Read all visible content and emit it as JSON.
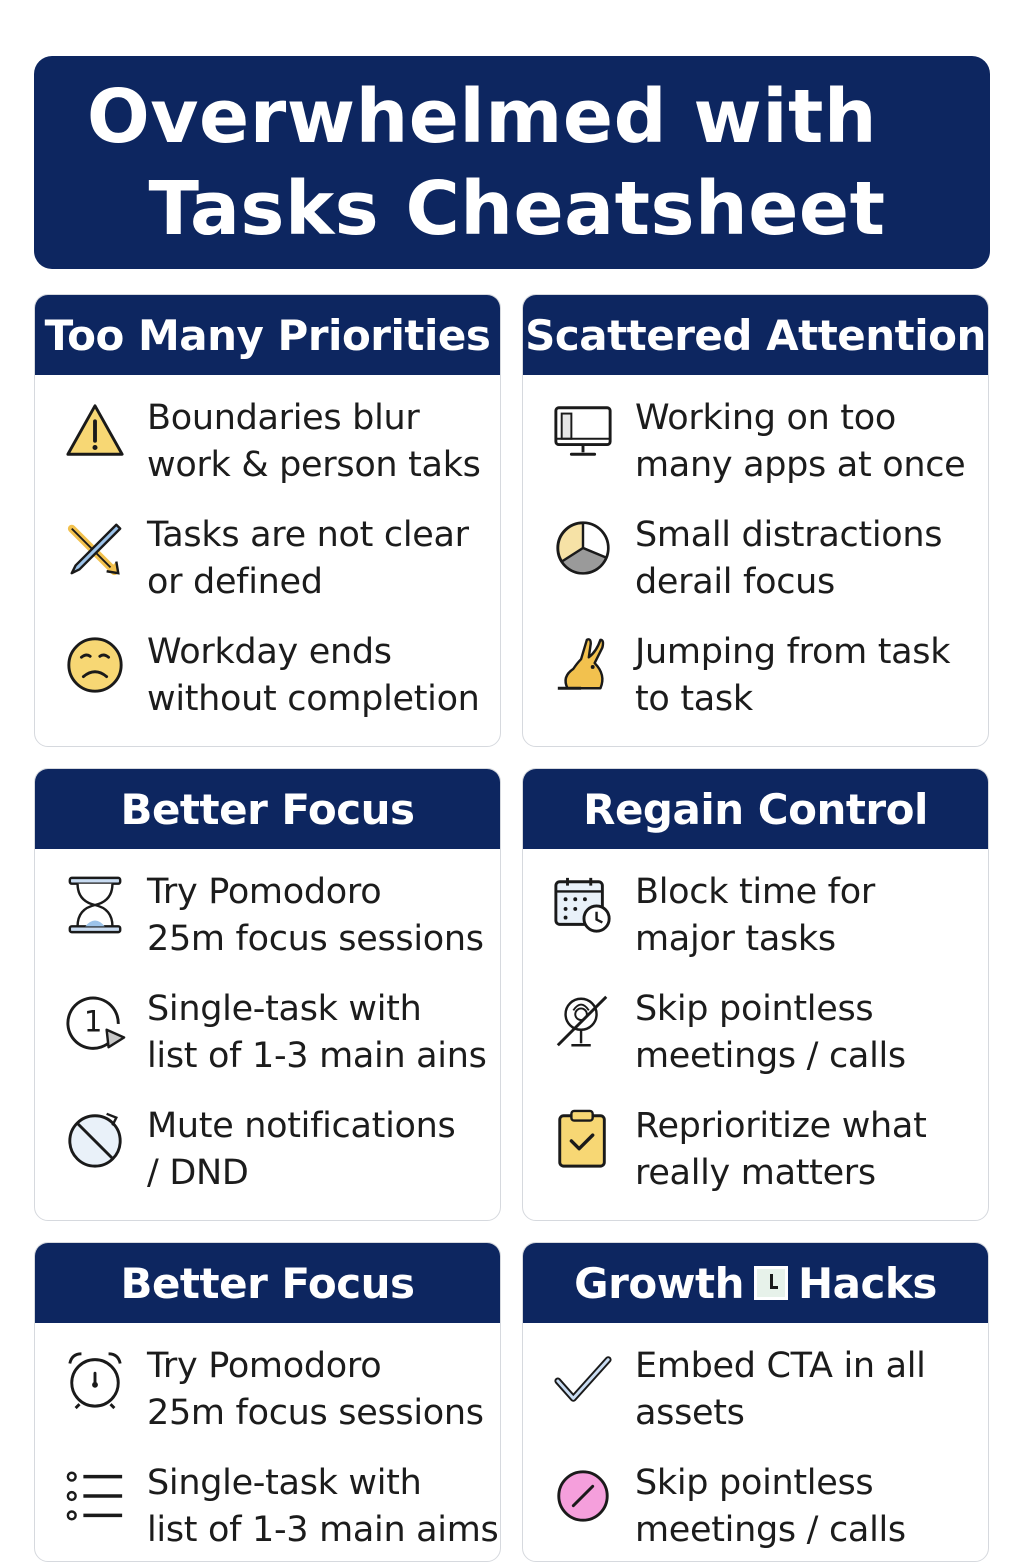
{
  "title": {
    "line1": "Overwhelmed with",
    "line2": "Tasks Cheatsheet"
  },
  "colors": {
    "navy": "#0d2660",
    "yellow": "#f7d774",
    "pink": "#f59fdc"
  },
  "cards": [
    {
      "header": "Too Many Priorities",
      "items": [
        {
          "icon": "warning-icon",
          "text": "Boundaries blur\nwork & person taks"
        },
        {
          "icon": "crossed-pencil-icon",
          "text": "Tasks are not clear\nor defined"
        },
        {
          "icon": "sad-face-icon",
          "text": "Workday ends\nwithout completion"
        }
      ]
    },
    {
      "header": "Scattered Attention",
      "items": [
        {
          "icon": "monitor-icon",
          "text": "Working on too\nmany apps at once"
        },
        {
          "icon": "pie-chart-icon",
          "text": "Small distractions\nderail focus"
        },
        {
          "icon": "rabbit-icon",
          "text": "Jumping from task\nto task"
        }
      ]
    },
    {
      "header": "Better Focus",
      "items": [
        {
          "icon": "hourglass-icon",
          "text": "Try Pomodoro\n25m focus sessions"
        },
        {
          "icon": "number-one-icon",
          "text": "Single-task with\nlist of 1-3 main ains"
        },
        {
          "icon": "timer-icon",
          "text": "Mute notifications\n/ DND"
        }
      ]
    },
    {
      "header": "Regain Control",
      "items": [
        {
          "icon": "calendar-clock-icon",
          "text": "Block time for\nmajor tasks"
        },
        {
          "icon": "no-meeting-icon",
          "text": "Skip pointless\nmeetings / calls"
        },
        {
          "icon": "clipboard-check-icon",
          "text": "Reprioritize what\nreally matters"
        }
      ]
    },
    {
      "header": "Better Focus",
      "items": [
        {
          "icon": "alarm-clock-icon",
          "text": "Try Pomodoro\n25m focus sessions"
        },
        {
          "icon": "list-icon",
          "text": "Single-task with\nlist of 1-3 main aims"
        }
      ]
    },
    {
      "header_left": "Growth",
      "header_right": "Hacks",
      "items": [
        {
          "icon": "checkmark-icon",
          "text": "Embed CTA in all\nassets"
        },
        {
          "icon": "pink-circle-icon",
          "text": "Skip pointless\nmeetings / calls"
        }
      ]
    }
  ]
}
